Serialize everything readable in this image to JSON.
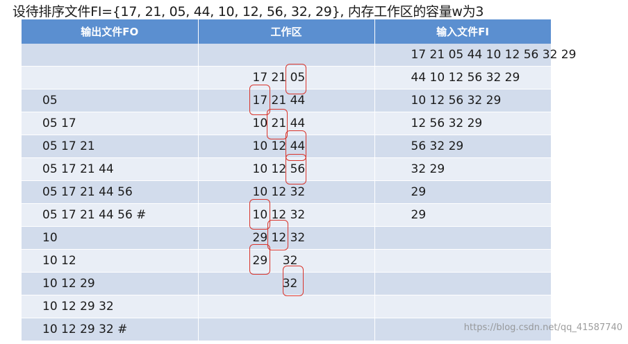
{
  "title": "设待排序文件FI={17, 21, 05, 44, 10, 12, 56, 32, 29}, 内存工作区的容量w为3",
  "table": {
    "headers": [
      "输出文件FO",
      "工作区",
      "输入文件FI"
    ],
    "rows": [
      [
        "",
        "",
        "17 21 05 44 10 12 56 32 29"
      ],
      [
        "",
        "17 21 05",
        "44 10 12 56 32 29"
      ],
      [
        "05",
        "17 21 44",
        "10 12 56 32 29"
      ],
      [
        "05 17",
        "10 21 44",
        "12 56 32 29"
      ],
      [
        "05 17 21",
        "10 12 44",
        "56 32 29"
      ],
      [
        "05 17 21 44",
        "10 12 56",
        "32 29"
      ],
      [
        "05 17 21 44 56",
        "10 12 32",
        "29"
      ],
      [
        "05 17 21 44 56 #",
        "10 12 32",
        "29"
      ],
      [
        "10",
        "29 12 32",
        ""
      ],
      [
        "10 12",
        "29    32",
        ""
      ],
      [
        "10 12 29",
        "        32",
        ""
      ],
      [
        "10 12 29 32",
        "",
        ""
      ],
      [
        "10 12 29 32 #",
        "",
        ""
      ]
    ]
  },
  "watermark": "https://blog.csdn.net/qq_41587740",
  "colors": {
    "header_bg": "#5b8fd0",
    "row_dark": "#d2dcec",
    "row_light": "#e9eef6",
    "highlight": "#d9342b"
  }
}
